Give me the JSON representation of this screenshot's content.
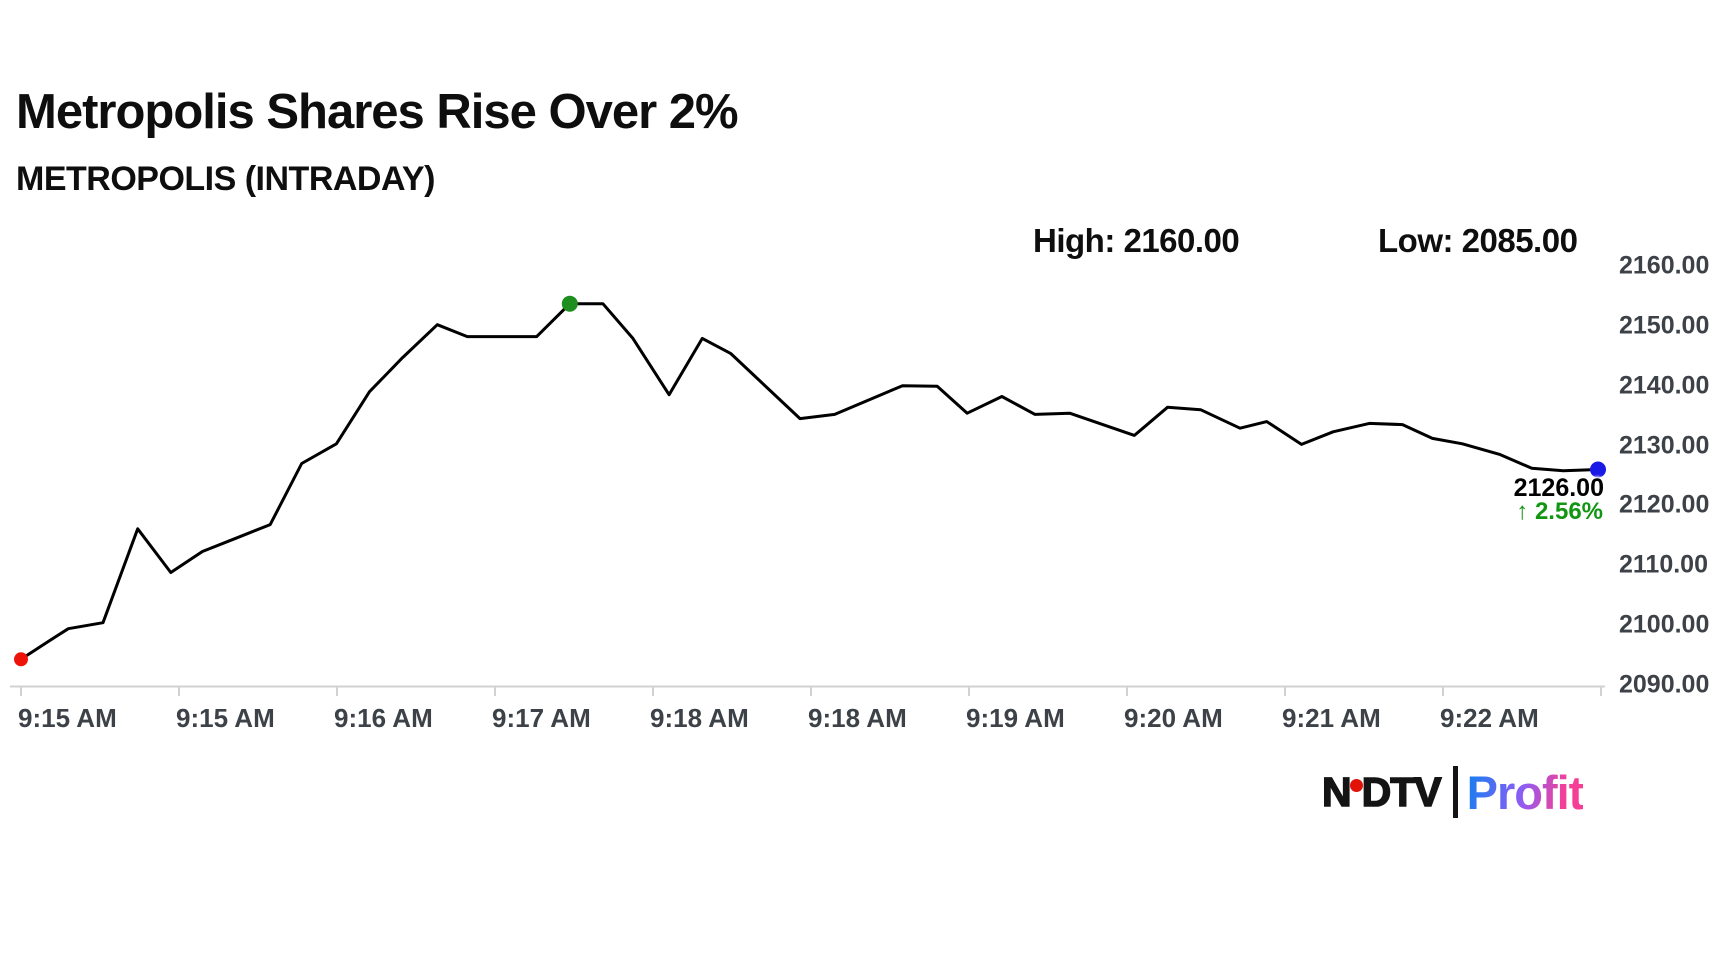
{
  "header": {
    "title": "Metropolis Shares Rise Over 2%",
    "subtitle": "METROPOLIS (INTRADAY)"
  },
  "stats": {
    "high": "High: 2160.00",
    "low": "Low: 2085.00"
  },
  "current": {
    "price": "2126.00",
    "change_display": "↑ 2.56%"
  },
  "logo": {
    "ndtv_n": "N",
    "ndtv_dtv": "DTV",
    "profit": "Profit"
  },
  "chart_data": {
    "type": "line",
    "title": "Metropolis Shares Rise Over 2%",
    "subtitle": "METROPOLIS (INTRADAY)",
    "high": 2160.0,
    "low": 2085.0,
    "last_price": 2126.0,
    "change_pct": 2.56,
    "direction": "up",
    "ylim": [
      2090,
      2160
    ],
    "grid": false,
    "legend": false,
    "y_tick_labels": [
      "2160.00",
      "2150.00",
      "2140.00",
      "2130.00",
      "2120.00",
      "2110.00",
      "2100.00",
      "2090.00"
    ],
    "x_tick_labels": [
      "9:15 AM",
      "9:15 AM",
      "9:16 AM",
      "9:17 AM",
      "9:18 AM",
      "9:18 AM",
      "9:19 AM",
      "9:20 AM",
      "9:21 AM",
      "9:22 AM"
    ],
    "series": [
      {
        "name": "METROPOLIS",
        "points": [
          [
            0.0,
            2094.3
          ],
          [
            0.018,
            2097.4
          ],
          [
            0.03,
            2099.4
          ],
          [
            0.052,
            2100.4
          ],
          [
            0.074,
            2116.1
          ],
          [
            0.095,
            2108.8
          ],
          [
            0.115,
            2112.3
          ],
          [
            0.137,
            2114.6
          ],
          [
            0.158,
            2116.8
          ],
          [
            0.178,
            2127.0
          ],
          [
            0.2,
            2130.3
          ],
          [
            0.221,
            2139.0
          ],
          [
            0.242,
            2144.7
          ],
          [
            0.264,
            2150.2
          ],
          [
            0.283,
            2148.2
          ],
          [
            0.327,
            2148.2
          ],
          [
            0.348,
            2153.7
          ],
          [
            0.369,
            2153.7
          ],
          [
            0.388,
            2147.9
          ],
          [
            0.411,
            2138.5
          ],
          [
            0.432,
            2147.9
          ],
          [
            0.45,
            2145.4
          ],
          [
            0.494,
            2134.5
          ],
          [
            0.516,
            2135.2
          ],
          [
            0.559,
            2140.0
          ],
          [
            0.581,
            2139.9
          ],
          [
            0.6,
            2135.4
          ],
          [
            0.622,
            2138.2
          ],
          [
            0.643,
            2135.2
          ],
          [
            0.665,
            2135.4
          ],
          [
            0.706,
            2131.7
          ],
          [
            0.727,
            2136.4
          ],
          [
            0.748,
            2136.0
          ],
          [
            0.773,
            2132.9
          ],
          [
            0.79,
            2134.0
          ],
          [
            0.812,
            2130.2
          ],
          [
            0.832,
            2132.3
          ],
          [
            0.855,
            2133.7
          ],
          [
            0.876,
            2133.5
          ],
          [
            0.895,
            2131.2
          ],
          [
            0.914,
            2130.3
          ],
          [
            0.938,
            2128.5
          ],
          [
            0.958,
            2126.2
          ],
          [
            0.978,
            2125.8
          ],
          [
            1.0,
            2126.0
          ]
        ]
      }
    ],
    "markers": [
      {
        "name": "start",
        "index": 0,
        "color": "#ee1309",
        "r": 7
      },
      {
        "name": "high",
        "index": 16,
        "color": "#1e8e1e",
        "r": 8
      },
      {
        "name": "current",
        "index": 44,
        "color": "#1a1ae6",
        "r": 8
      }
    ],
    "colors": {
      "line": "#000000",
      "axis": "#d2d2d2",
      "axis_text": "#3d4248",
      "change_up": "#129612"
    }
  }
}
